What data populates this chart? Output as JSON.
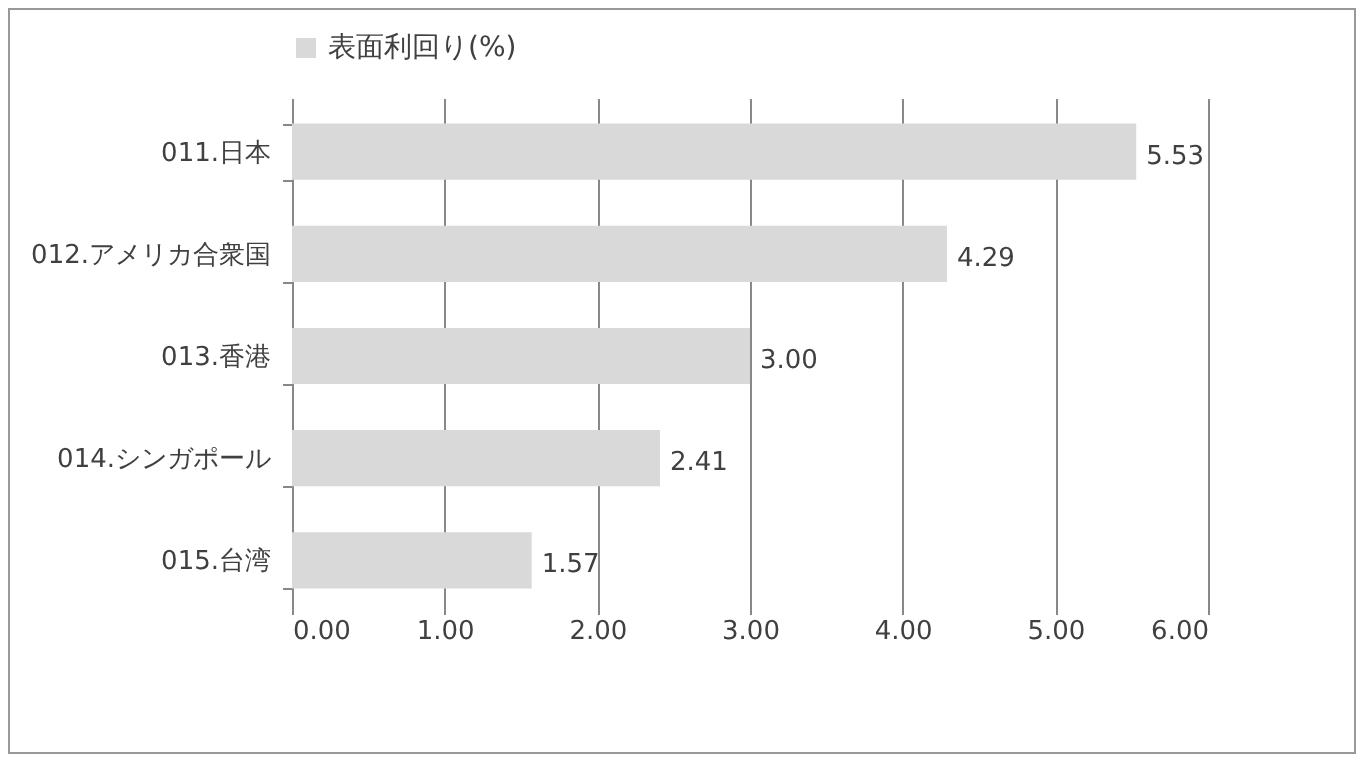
{
  "chart_data": {
    "type": "bar",
    "orientation": "horizontal",
    "categories": [
      "011.日本",
      "012.アメリカ合衆国",
      "013.香港",
      "014.シンガポール",
      "015.台湾"
    ],
    "series": [
      {
        "name": "表面利回り(%)",
        "color": "#d9d9d9",
        "values": [
          5.53,
          4.29,
          3.0,
          2.41,
          1.57
        ],
        "value_labels": [
          "5.53",
          "4.29",
          "3.00",
          "2.41",
          "1.57"
        ]
      }
    ],
    "xlim": [
      0,
      6
    ],
    "xticks": [
      {
        "value": 0,
        "label": "0.00"
      },
      {
        "value": 1,
        "label": "1.00"
      },
      {
        "value": 2,
        "label": "2.00"
      },
      {
        "value": 3,
        "label": "3.00"
      },
      {
        "value": 4,
        "label": "4.00"
      },
      {
        "value": 5,
        "label": "5.00"
      },
      {
        "value": 6,
        "label": "6.00"
      }
    ],
    "grid": "x",
    "legend": "top"
  }
}
